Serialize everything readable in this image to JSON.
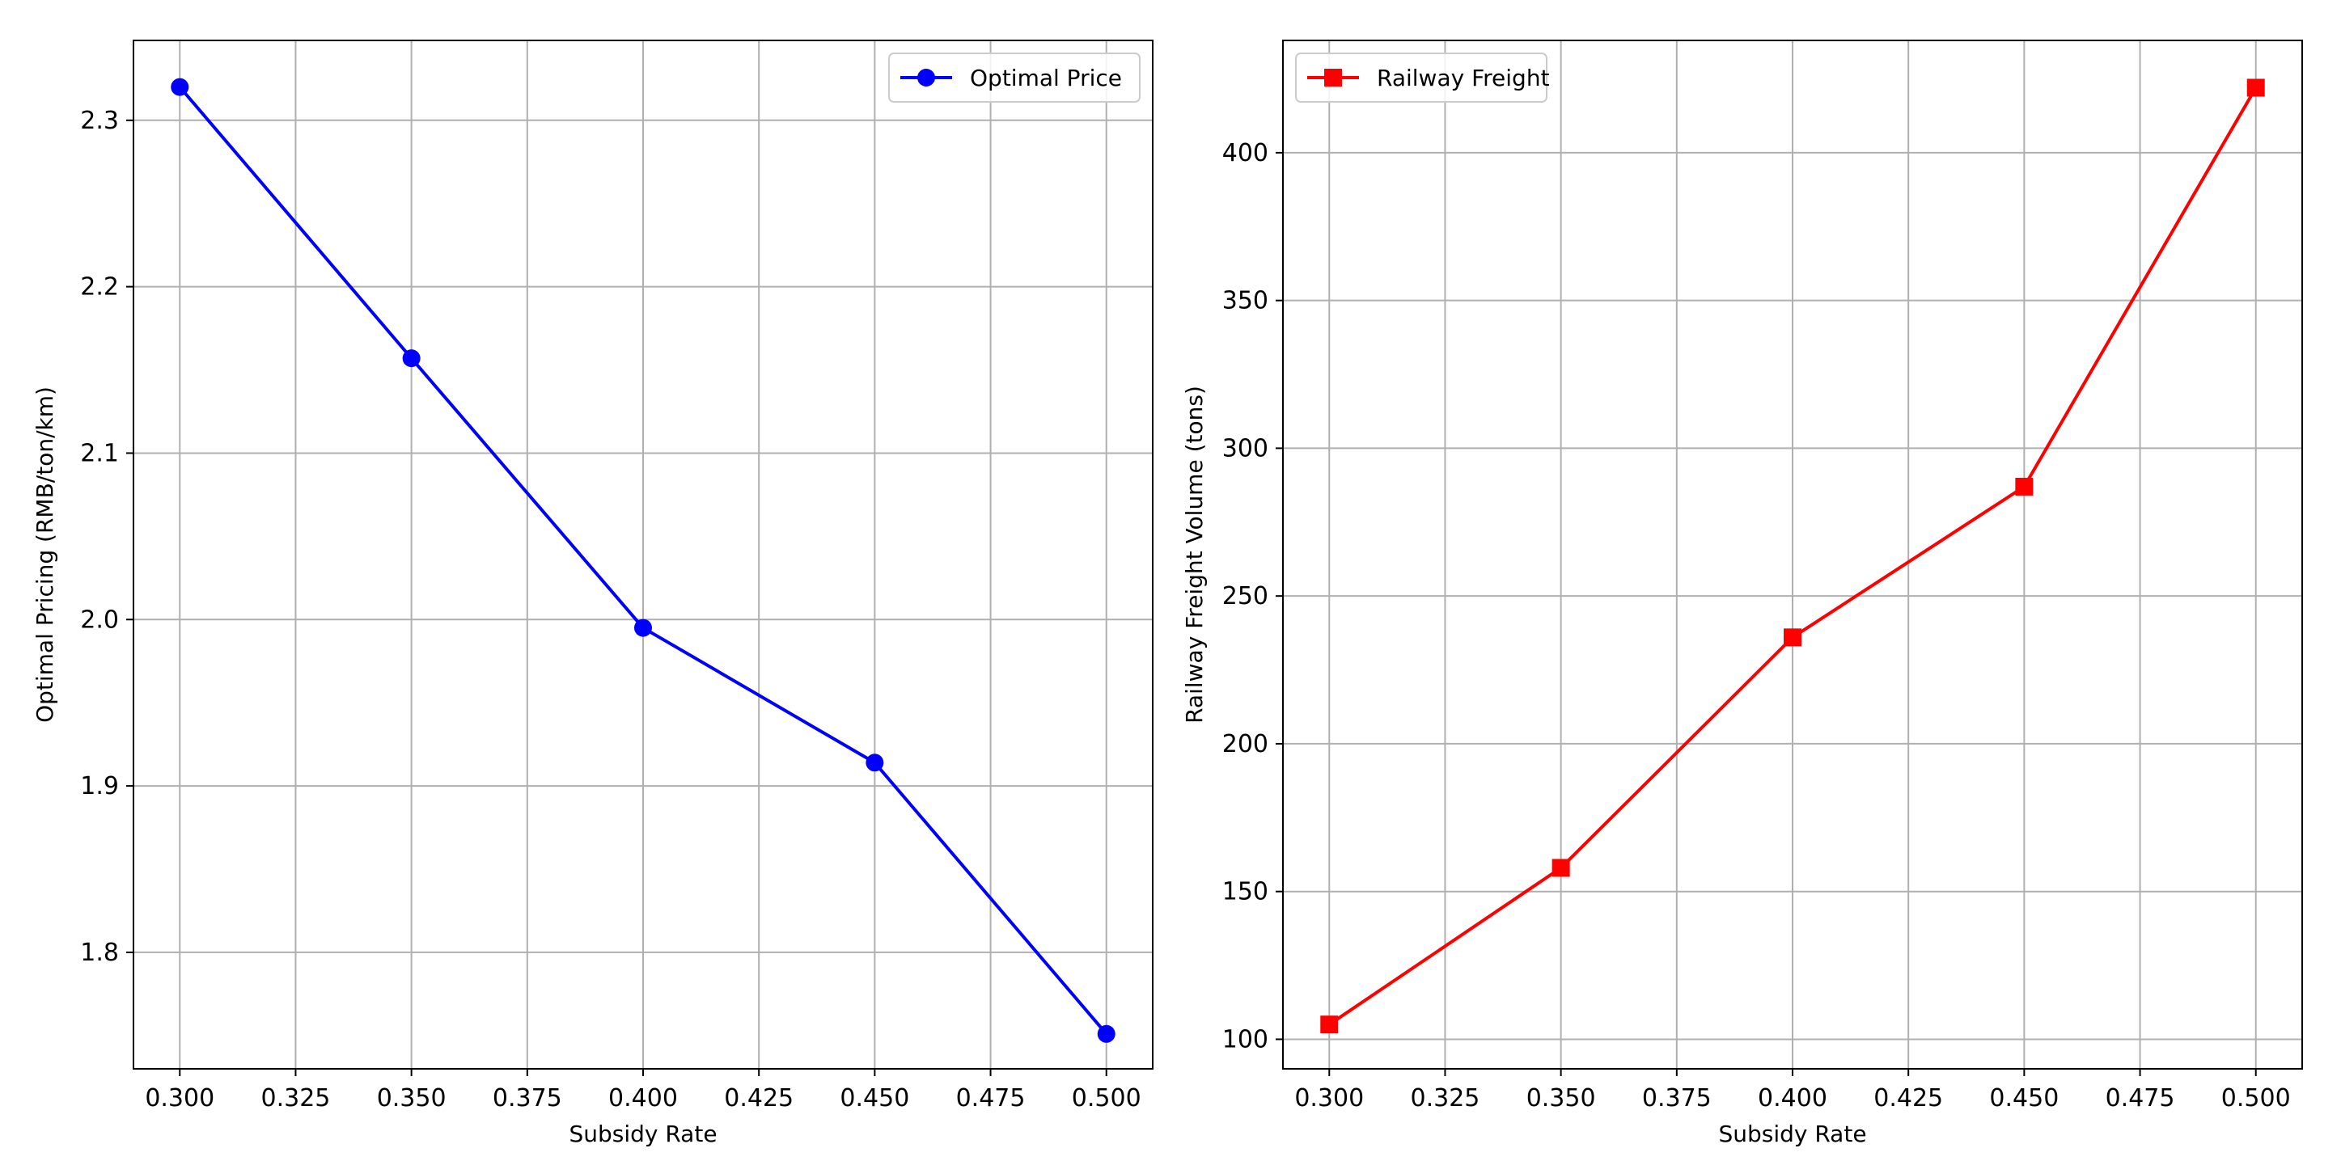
{
  "chart_data": [
    {
      "type": "line",
      "title": "",
      "xlabel": "Subsidy Rate",
      "ylabel": "Optimal Pricing (RMB/ton/km)",
      "x": [
        0.3,
        0.35,
        0.4,
        0.45,
        0.5
      ],
      "xlim": [
        0.29,
        0.51
      ],
      "ylim": [
        1.73,
        2.348
      ],
      "xticks": [
        "0.300",
        "0.325",
        "0.350",
        "0.375",
        "0.400",
        "0.425",
        "0.450",
        "0.475",
        "0.500"
      ],
      "yticks": [
        "1.8",
        "1.9",
        "2.0",
        "2.1",
        "2.2",
        "2.3"
      ],
      "grid": true,
      "legend_position": "top-right",
      "series": [
        {
          "name": "Optimal Price",
          "color": "#0000ff",
          "marker": "circle",
          "values": [
            2.32,
            2.157,
            1.995,
            1.914,
            1.751
          ]
        }
      ]
    },
    {
      "type": "line",
      "title": "",
      "xlabel": "Subsidy Rate",
      "ylabel": "Railway Freight Volume (tons)",
      "x": [
        0.3,
        0.35,
        0.4,
        0.45,
        0.5
      ],
      "xlim": [
        0.29,
        0.51
      ],
      "ylim": [
        90,
        438
      ],
      "xticks": [
        "0.300",
        "0.325",
        "0.350",
        "0.375",
        "0.400",
        "0.425",
        "0.450",
        "0.475",
        "0.500"
      ],
      "yticks": [
        "100",
        "150",
        "200",
        "250",
        "300",
        "350",
        "400"
      ],
      "grid": true,
      "legend_position": "top-left",
      "series": [
        {
          "name": "Railway Freight",
          "color": "#ff0000",
          "marker": "square",
          "values": [
            105,
            158,
            236,
            287,
            422
          ]
        }
      ]
    }
  ]
}
